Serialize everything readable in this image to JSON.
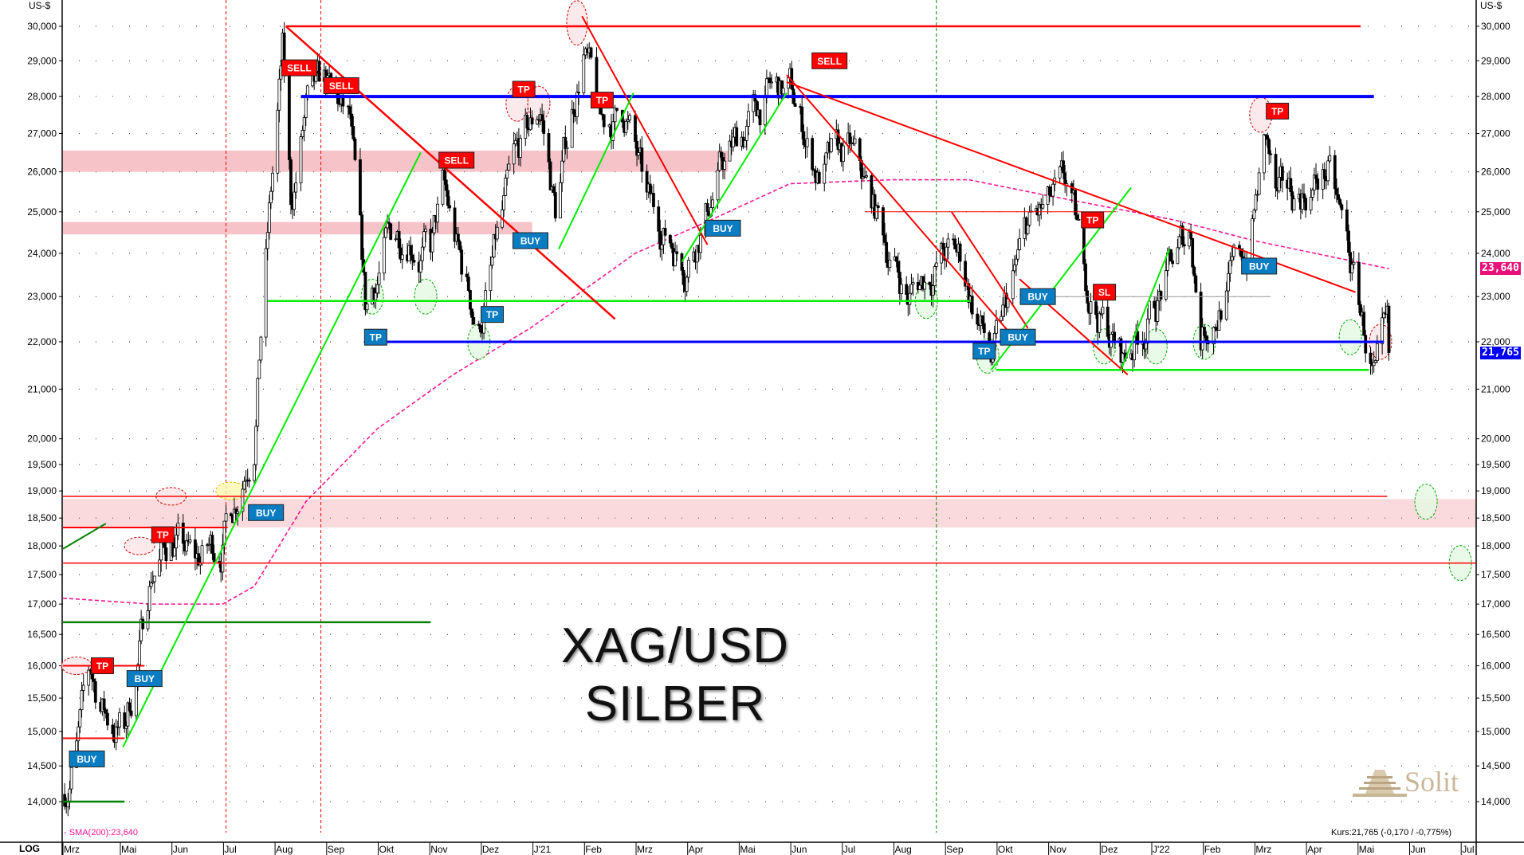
{
  "header": {
    "currency_left": "US-$",
    "currency_right": "US-$",
    "scale_mode": "LOG"
  },
  "watermark": {
    "line1": "XAG/USD",
    "line2": "SILBER"
  },
  "logo": {
    "text": "Solit"
  },
  "legend": {
    "sma": "- SMA(200):23,640"
  },
  "quote": {
    "text": "Kurs:21,765 (-0,170 / -0,775%)"
  },
  "price_tags": {
    "sma": "23,640",
    "last": "21,765",
    "sma_color": "#e8107a",
    "last_color": "#0000ff"
  },
  "chart_data": {
    "type": "candlestick",
    "title": "XAG/USD SILBER",
    "y_scale": "log",
    "ylim": [
      13.6,
      30.6
    ],
    "grid": "dotted",
    "y_ticks": [
      "30,000",
      "29,000",
      "28,000",
      "27,000",
      "26,000",
      "25,000",
      "24,000",
      "23,000",
      "22,000",
      "21,000",
      "20,000",
      "19,500",
      "19,000",
      "18,500",
      "18,000",
      "17,500",
      "17,000",
      "16,500",
      "16,000",
      "15,500",
      "15,000",
      "14,500",
      "14,000"
    ],
    "x_ticks": [
      {
        "label": "Mrz",
        "date": "2020-03-01"
      },
      {
        "label": "Mai",
        "date": "2020-05-01"
      },
      {
        "label": "Jun",
        "date": "2020-06-01"
      },
      {
        "label": "Jul",
        "date": "2020-07-01"
      },
      {
        "label": "Aug",
        "date": "2020-08-01"
      },
      {
        "label": "Sep",
        "date": "2020-09-01"
      },
      {
        "label": "Okt",
        "date": "2020-10-01"
      },
      {
        "label": "Nov",
        "date": "2020-11-01"
      },
      {
        "label": "Dez",
        "date": "2020-12-01"
      },
      {
        "label": "J'21",
        "date": "2021-01-01"
      },
      {
        "label": "Feb",
        "date": "2021-02-01"
      },
      {
        "label": "Mrz",
        "date": "2021-03-01"
      },
      {
        "label": "Apr",
        "date": "2021-04-01"
      },
      {
        "label": "Mai",
        "date": "2021-05-01"
      },
      {
        "label": "Jun",
        "date": "2021-06-01"
      },
      {
        "label": "Jul",
        "date": "2021-07-01"
      },
      {
        "label": "Aug",
        "date": "2021-08-01"
      },
      {
        "label": "Sep",
        "date": "2021-09-01"
      },
      {
        "label": "Okt",
        "date": "2021-10-01"
      },
      {
        "label": "Nov",
        "date": "2021-11-01"
      },
      {
        "label": "Dez",
        "date": "2021-12-01"
      },
      {
        "label": "J'22",
        "date": "2022-01-01"
      },
      {
        "label": "Feb",
        "date": "2022-02-01"
      },
      {
        "label": "Mrz",
        "date": "2022-03-01"
      },
      {
        "label": "Apr",
        "date": "2022-04-01"
      },
      {
        "label": "Mai",
        "date": "2022-05-01"
      },
      {
        "label": "Jun",
        "date": "2022-06-01"
      },
      {
        "label": "Jul",
        "date": "2022-07-01"
      }
    ],
    "price": [
      [
        "2020-03-29",
        14.1
      ],
      [
        "2020-04-06",
        14.8
      ],
      [
        "2020-04-14",
        15.8
      ],
      [
        "2020-04-24",
        15.2
      ],
      [
        "2020-05-04",
        15.0
      ],
      [
        "2020-05-14",
        16.4
      ],
      [
        "2020-05-20",
        17.6
      ],
      [
        "2020-06-01",
        18.2
      ],
      [
        "2020-06-15",
        17.6
      ],
      [
        "2020-06-30",
        18.1
      ],
      [
        "2020-07-08",
        18.9
      ],
      [
        "2020-07-20",
        20.4
      ],
      [
        "2020-07-27",
        24.0
      ],
      [
        "2020-08-06",
        29.0
      ],
      [
        "2020-08-11",
        25.0
      ],
      [
        "2020-08-20",
        27.5
      ],
      [
        "2020-09-01",
        28.0
      ],
      [
        "2020-09-15",
        27.0
      ],
      [
        "2020-09-24",
        22.4
      ],
      [
        "2020-10-05",
        24.0
      ],
      [
        "2020-10-20",
        24.8
      ],
      [
        "2020-11-02",
        24.0
      ],
      [
        "2020-11-09",
        25.4
      ],
      [
        "2020-11-20",
        23.5
      ],
      [
        "2020-11-30",
        22.3
      ],
      [
        "2020-12-10",
        24.0
      ],
      [
        "2020-12-21",
        25.8
      ],
      [
        "2021-01-06",
        27.6
      ],
      [
        "2021-01-15",
        25.0
      ],
      [
        "2021-02-01",
        29.5
      ],
      [
        "2021-02-10",
        27.0
      ],
      [
        "2021-02-24",
        27.6
      ],
      [
        "2021-03-08",
        25.0
      ],
      [
        "2021-03-31",
        24.0
      ],
      [
        "2021-04-20",
        26.0
      ],
      [
        "2021-05-18",
        28.0
      ],
      [
        "2021-06-01",
        28.0
      ],
      [
        "2021-06-17",
        26.0
      ],
      [
        "2021-07-06",
        26.3
      ],
      [
        "2021-07-20",
        25.0
      ],
      [
        "2021-08-10",
        23.0
      ],
      [
        "2021-08-30",
        24.0
      ],
      [
        "2021-09-10",
        23.8
      ],
      [
        "2021-09-29",
        21.5
      ],
      [
        "2021-10-20",
        24.5
      ],
      [
        "2021-11-12",
        25.3
      ],
      [
        "2021-11-24",
        23.2
      ],
      [
        "2021-12-15",
        21.6
      ],
      [
        "2022-01-05",
        23.0
      ],
      [
        "2022-01-25",
        24.5
      ],
      [
        "2022-01-31",
        22.3
      ],
      [
        "2022-02-25",
        24.0
      ],
      [
        "2022-03-08",
        26.8
      ],
      [
        "2022-03-15",
        25.0
      ],
      [
        "2022-04-14",
        26.0
      ],
      [
        "2022-04-28",
        23.5
      ],
      [
        "2022-05-12",
        21.0
      ],
      [
        "2022-05-16",
        21.5
      ],
      [
        "2022-05-20",
        21.765
      ]
    ],
    "sma": {
      "name": "SMA(200)",
      "color": "#ff1493",
      "values": [
        [
          "2020-03-29",
          17.1
        ],
        [
          "2020-05-20",
          17.0
        ],
        [
          "2020-07-01",
          17.0
        ],
        [
          "2020-07-20",
          17.3
        ],
        [
          "2020-08-20",
          18.8
        ],
        [
          "2020-10-01",
          20.2
        ],
        [
          "2020-11-15",
          21.3
        ],
        [
          "2020-12-31",
          22.3
        ],
        [
          "2021-03-01",
          24.0
        ],
        [
          "2021-04-15",
          24.8
        ],
        [
          "2021-06-01",
          25.7
        ],
        [
          "2021-08-01",
          25.8
        ],
        [
          "2021-09-15",
          25.8
        ],
        [
          "2021-11-01",
          25.4
        ],
        [
          "2022-01-15",
          24.8
        ],
        [
          "2022-03-01",
          24.3
        ],
        [
          "2022-05-20",
          23.64
        ]
      ]
    },
    "zones": [
      {
        "from": "2020-03-29",
        "to": "2021-04-25",
        "low": 26.0,
        "high": 26.55,
        "color": "#f6c3c9"
      },
      {
        "from": "2020-03-29",
        "to": "2021-01-01",
        "low": 24.45,
        "high": 24.75,
        "color": "#f6c3c9"
      },
      {
        "from": "2020-03-29",
        "to": "2022-07-12",
        "low": 18.33,
        "high": 18.85,
        "color": "#fbdadd"
      }
    ],
    "hlines": [
      {
        "price": 30.0,
        "from": "2020-08-08",
        "to": "2022-05-03",
        "color": "#ff0000",
        "w": 2.5
      },
      {
        "price": 28.0,
        "from": "2020-08-17",
        "to": "2022-05-11",
        "color": "#0000ff",
        "w": 4
      },
      {
        "price": 22.0,
        "from": "2020-09-25",
        "to": "2022-05-17",
        "color": "#0000ff",
        "w": 3
      },
      {
        "price": 22.9,
        "from": "2020-07-28",
        "to": "2021-09-16",
        "color": "#00ee00",
        "w": 2.5
      },
      {
        "price": 21.4,
        "from": "2021-10-01",
        "to": "2022-05-08",
        "color": "#00ee00",
        "w": 2.5
      },
      {
        "price": 25.0,
        "from": "2021-07-15",
        "to": "2021-12-11",
        "color": "#ff0000",
        "w": 1
      },
      {
        "price": 23.0,
        "from": "2021-10-15",
        "to": "2022-03-11",
        "color": "#999999",
        "w": 1
      },
      {
        "price": 18.9,
        "from": "2020-03-29",
        "to": "2022-05-19",
        "color": "#ff0000",
        "w": 1.5
      },
      {
        "price": 17.7,
        "from": "2020-03-29",
        "to": "2022-07-12",
        "color": "#ff0000",
        "w": 1.5
      },
      {
        "price": 18.33,
        "from": "2020-03-29",
        "to": "2020-07-04",
        "color": "#ff0000",
        "w": 2
      },
      {
        "price": 16.0,
        "from": "2020-03-29",
        "to": "2020-05-16",
        "color": "#ff0000",
        "w": 2
      },
      {
        "price": 14.9,
        "from": "2020-03-29",
        "to": "2020-05-04",
        "color": "#ff0000",
        "w": 2
      },
      {
        "price": 16.7,
        "from": "2020-03-29",
        "to": "2020-11-02",
        "color": "#008000",
        "w": 2.5
      },
      {
        "price": 14.0,
        "from": "2020-03-29",
        "to": "2020-05-04",
        "color": "#008000",
        "w": 2.5
      }
    ],
    "trendlines": [
      {
        "p1": [
          "2020-08-08",
          30.0
        ],
        "p2": [
          "2021-02-18",
          22.5
        ],
        "color": "#ff0000",
        "w": 2.5
      },
      {
        "p1": [
          "2021-01-31",
          30.3
        ],
        "p2": [
          "2021-04-13",
          24.2
        ],
        "color": "#ff0000",
        "w": 2
      },
      {
        "p1": [
          "2021-05-30",
          28.6
        ],
        "p2": [
          "2021-10-09",
          22.2
        ],
        "color": "#ff0000",
        "w": 2
      },
      {
        "p1": [
          "2021-05-30",
          28.4
        ],
        "p2": [
          "2022-04-30",
          23.1
        ],
        "color": "#ff0000",
        "w": 2
      },
      {
        "p1": [
          "2021-09-05",
          25.0
        ],
        "p2": [
          "2021-10-20",
          22.3
        ],
        "color": "#ff0000",
        "w": 2
      },
      {
        "p1": [
          "2021-10-15",
          23.4
        ],
        "p2": [
          "2021-12-18",
          21.3
        ],
        "color": "#ff0000",
        "w": 2
      },
      {
        "p1": [
          "2020-05-03",
          14.77
        ],
        "p2": [
          "2020-10-27",
          26.5
        ],
        "color": "#00ee00",
        "w": 2
      },
      {
        "p1": [
          "2021-01-17",
          24.1
        ],
        "p2": [
          "2021-02-28",
          28.1
        ],
        "color": "#00ee00",
        "w": 2
      },
      {
        "p1": [
          "2021-03-29",
          23.8
        ],
        "p2": [
          "2021-05-30",
          28.1
        ],
        "color": "#00ee00",
        "w": 2
      },
      {
        "p1": [
          "2021-09-28",
          21.4
        ],
        "p2": [
          "2021-12-20",
          25.6
        ],
        "color": "#00ee00",
        "w": 2
      },
      {
        "p1": [
          "2021-12-14",
          21.4
        ],
        "p2": [
          "2022-01-12",
          24.1
        ],
        "color": "#00ee00",
        "w": 2
      },
      {
        "p1": [
          "2020-03-29",
          17.95
        ],
        "p2": [
          "2020-04-23",
          18.4
        ],
        "color": "#008000",
        "w": 2
      }
    ],
    "vlines": [
      {
        "date": "2020-07-03",
        "color": "#ff0000"
      },
      {
        "date": "2020-08-29",
        "color": "#ff0000"
      },
      {
        "date": "2021-08-27",
        "color": "#008000"
      }
    ],
    "highlights": [
      {
        "date": "2021-01-28",
        "price": 30.1,
        "color": "#cc0000",
        "fill": "#fbe3e6",
        "big": true
      },
      {
        "date": "2020-12-23",
        "price": 27.8,
        "color": "#cc0000",
        "fill": "#fbe3e6"
      },
      {
        "date": "2021-01-05",
        "price": 27.8,
        "color": "#cc0000",
        "fill": "#fbe3e6"
      },
      {
        "date": "2022-03-05",
        "price": 27.5,
        "color": "#cc0000",
        "fill": "#fbe3e6"
      },
      {
        "date": "2022-05-15",
        "price": 22.0,
        "color": "#cc0000",
        "fill": "#fbe3e6"
      },
      {
        "date": "2020-06-01",
        "price": 18.9,
        "color": "#cc0000",
        "fill": "#fbe3e6",
        "flat": true
      },
      {
        "date": "2020-05-13",
        "price": 18.0,
        "color": "#cc0000",
        "fill": "#fbe3e6",
        "flat": true
      },
      {
        "date": "2020-04-06",
        "price": 16.0,
        "color": "#cc0000",
        "fill": "#fbe3e6",
        "flat": true
      },
      {
        "date": "2020-07-06",
        "price": 19.0,
        "color": "#d8c000",
        "fill": "#fff7b0",
        "flat": true
      },
      {
        "date": "2020-09-28",
        "price": 23.0,
        "color": "#00aa00",
        "fill": "#e3f9e3"
      },
      {
        "date": "2020-10-30",
        "price": 23.0,
        "color": "#00aa00",
        "fill": "#e3f9e3"
      },
      {
        "date": "2020-11-30",
        "price": 22.0,
        "color": "#00aa00",
        "fill": "#e3f9e3"
      },
      {
        "date": "2021-08-21",
        "price": 22.9,
        "color": "#00aa00",
        "fill": "#e3f9e3"
      },
      {
        "date": "2021-09-26",
        "price": 21.7,
        "color": "#00aa00",
        "fill": "#e3f9e3"
      },
      {
        "date": "2021-12-04",
        "price": 21.9,
        "color": "#00aa00",
        "fill": "#e3f9e3"
      },
      {
        "date": "2022-01-04",
        "price": 21.9,
        "color": "#00aa00",
        "fill": "#e3f9e3"
      },
      {
        "date": "2022-02-02",
        "price": 22.0,
        "color": "#00aa00",
        "fill": "#e3f9e3"
      },
      {
        "date": "2022-04-27",
        "price": 22.1,
        "color": "#00aa00",
        "fill": "#e3f9e3"
      },
      {
        "date": "2022-06-11",
        "price": 18.8,
        "color": "#00aa00",
        "fill": "#e3f9e3"
      },
      {
        "date": "2022-07-01",
        "price": 17.7,
        "color": "#00aa00",
        "fill": "#e3f9e3"
      }
    ],
    "signals": [
      {
        "label": "SELL",
        "date": "2020-08-16",
        "price": 28.8,
        "color": "#ff0000"
      },
      {
        "label": "SELL",
        "date": "2020-09-10",
        "price": 28.3,
        "color": "#ff0000"
      },
      {
        "label": "SELL",
        "date": "2020-11-17",
        "price": 26.3,
        "color": "#ff0000"
      },
      {
        "label": "SELL",
        "date": "2021-06-24",
        "price": 29.0,
        "color": "#ff0000"
      },
      {
        "label": "TP",
        "date": "2020-04-21",
        "price": 16.0,
        "color": "#ff0000"
      },
      {
        "label": "TP",
        "date": "2020-05-27",
        "price": 18.2,
        "color": "#ff0000"
      },
      {
        "label": "TP",
        "date": "2020-12-27",
        "price": 28.2,
        "color": "#ff0000"
      },
      {
        "label": "TP",
        "date": "2021-02-11",
        "price": 27.9,
        "color": "#ff0000"
      },
      {
        "label": "TP",
        "date": "2021-11-27",
        "price": 24.8,
        "color": "#ff0000"
      },
      {
        "label": "TP",
        "date": "2022-03-15",
        "price": 27.6,
        "color": "#ff0000"
      },
      {
        "label": "SL",
        "date": "2021-12-04",
        "price": 23.1,
        "color": "#ff0000"
      },
      {
        "label": "BUY",
        "date": "2020-04-12",
        "price": 14.6,
        "color": "#0a7cc2"
      },
      {
        "label": "BUY",
        "date": "2020-05-16",
        "price": 15.8,
        "color": "#0a7cc2"
      },
      {
        "label": "BUY",
        "date": "2020-07-27",
        "price": 18.6,
        "color": "#0a7cc2"
      },
      {
        "label": "BUY",
        "date": "2020-12-31",
        "price": 24.3,
        "color": "#0a7cc2"
      },
      {
        "label": "BUY",
        "date": "2021-04-22",
        "price": 24.6,
        "color": "#0a7cc2"
      },
      {
        "label": "BUY",
        "date": "2021-10-26",
        "price": 23.0,
        "color": "#0a7cc2"
      },
      {
        "label": "BUY",
        "date": "2021-10-14",
        "price": 22.1,
        "color": "#0a7cc2"
      },
      {
        "label": "BUY",
        "date": "2022-03-04",
        "price": 23.7,
        "color": "#0a7cc2"
      },
      {
        "label": "TP",
        "date": "2020-09-30",
        "price": 22.1,
        "color": "#0a7cc2"
      },
      {
        "label": "TP",
        "date": "2020-12-08",
        "price": 22.6,
        "color": "#0a7cc2"
      },
      {
        "label": "TP",
        "date": "2021-09-24",
        "price": 21.8,
        "color": "#0a7cc2"
      }
    ]
  }
}
